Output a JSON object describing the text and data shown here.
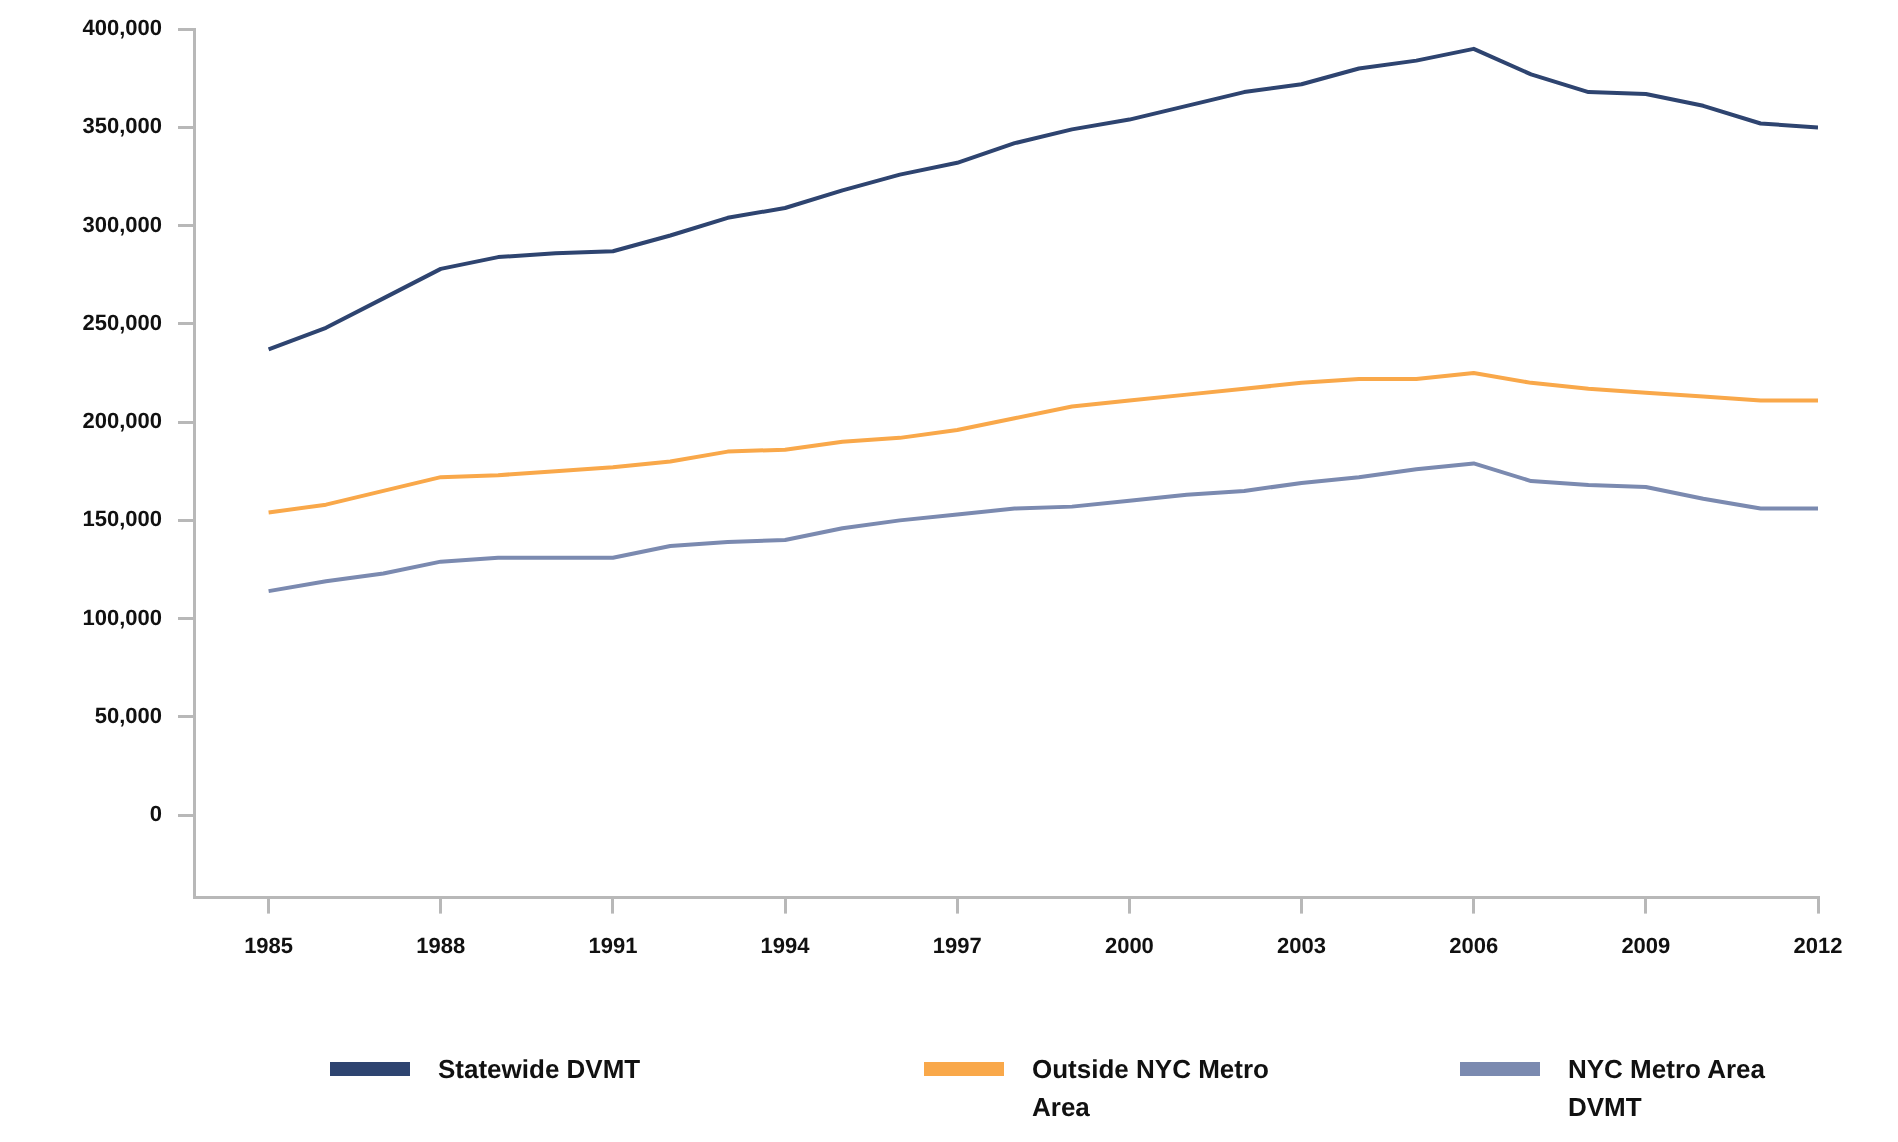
{
  "chart_data": {
    "type": "line",
    "x": [
      1985,
      1986,
      1987,
      1988,
      1989,
      1990,
      1991,
      1992,
      1993,
      1994,
      1995,
      1996,
      1997,
      1998,
      1999,
      2000,
      2001,
      2002,
      2003,
      2004,
      2005,
      2006,
      2007,
      2008,
      2009,
      2010,
      2011,
      2012
    ],
    "series": [
      {
        "name": "Statewide DVMT",
        "color": "#2e4470",
        "values": [
          237000,
          248000,
          263000,
          278000,
          284000,
          286000,
          287000,
          295000,
          304000,
          309000,
          318000,
          326000,
          332000,
          342000,
          349000,
          354000,
          361000,
          368000,
          372000,
          380000,
          384000,
          390000,
          377000,
          368000,
          367000,
          361000,
          352000,
          350000
        ]
      },
      {
        "name": "Outside NYC Metro Area",
        "color": "#f9a84a",
        "values": [
          154000,
          158000,
          165000,
          172000,
          173000,
          175000,
          177000,
          180000,
          185000,
          186000,
          190000,
          192000,
          196000,
          202000,
          208000,
          211000,
          214000,
          217000,
          220000,
          222000,
          222000,
          225000,
          220000,
          217000,
          215000,
          213000,
          211000,
          211000
        ]
      },
      {
        "name": "NYC Metro Area DVMT",
        "color": "#7b8ab0",
        "values": [
          114000,
          119000,
          123000,
          129000,
          131000,
          131000,
          131000,
          137000,
          139000,
          140000,
          146000,
          150000,
          153000,
          156000,
          157000,
          160000,
          163000,
          165000,
          169000,
          172000,
          176000,
          179000,
          170000,
          168000,
          167000,
          161000,
          156000,
          156000
        ]
      }
    ],
    "xlim": [
      1983.7,
      2012
    ],
    "xticks": [
      1985,
      1988,
      1991,
      1994,
      1997,
      2000,
      2003,
      2006,
      2009,
      2012
    ],
    "ylim": [
      -42000,
      400000
    ],
    "yticks": [
      {
        "value": 0,
        "label": "0"
      },
      {
        "value": 50000,
        "label": "50,000"
      },
      {
        "value": 100000,
        "label": "100,000"
      },
      {
        "value": 150000,
        "label": "150,000"
      },
      {
        "value": 200000,
        "label": "200,000"
      },
      {
        "value": 250000,
        "label": "250,000"
      },
      {
        "value": 300000,
        "label": "300,000"
      },
      {
        "value": 350000,
        "label": "350,000"
      },
      {
        "value": 400000,
        "label": "400,000"
      }
    ],
    "grid": false,
    "legend": "bottom",
    "marker": "none",
    "line_style": "solid"
  }
}
